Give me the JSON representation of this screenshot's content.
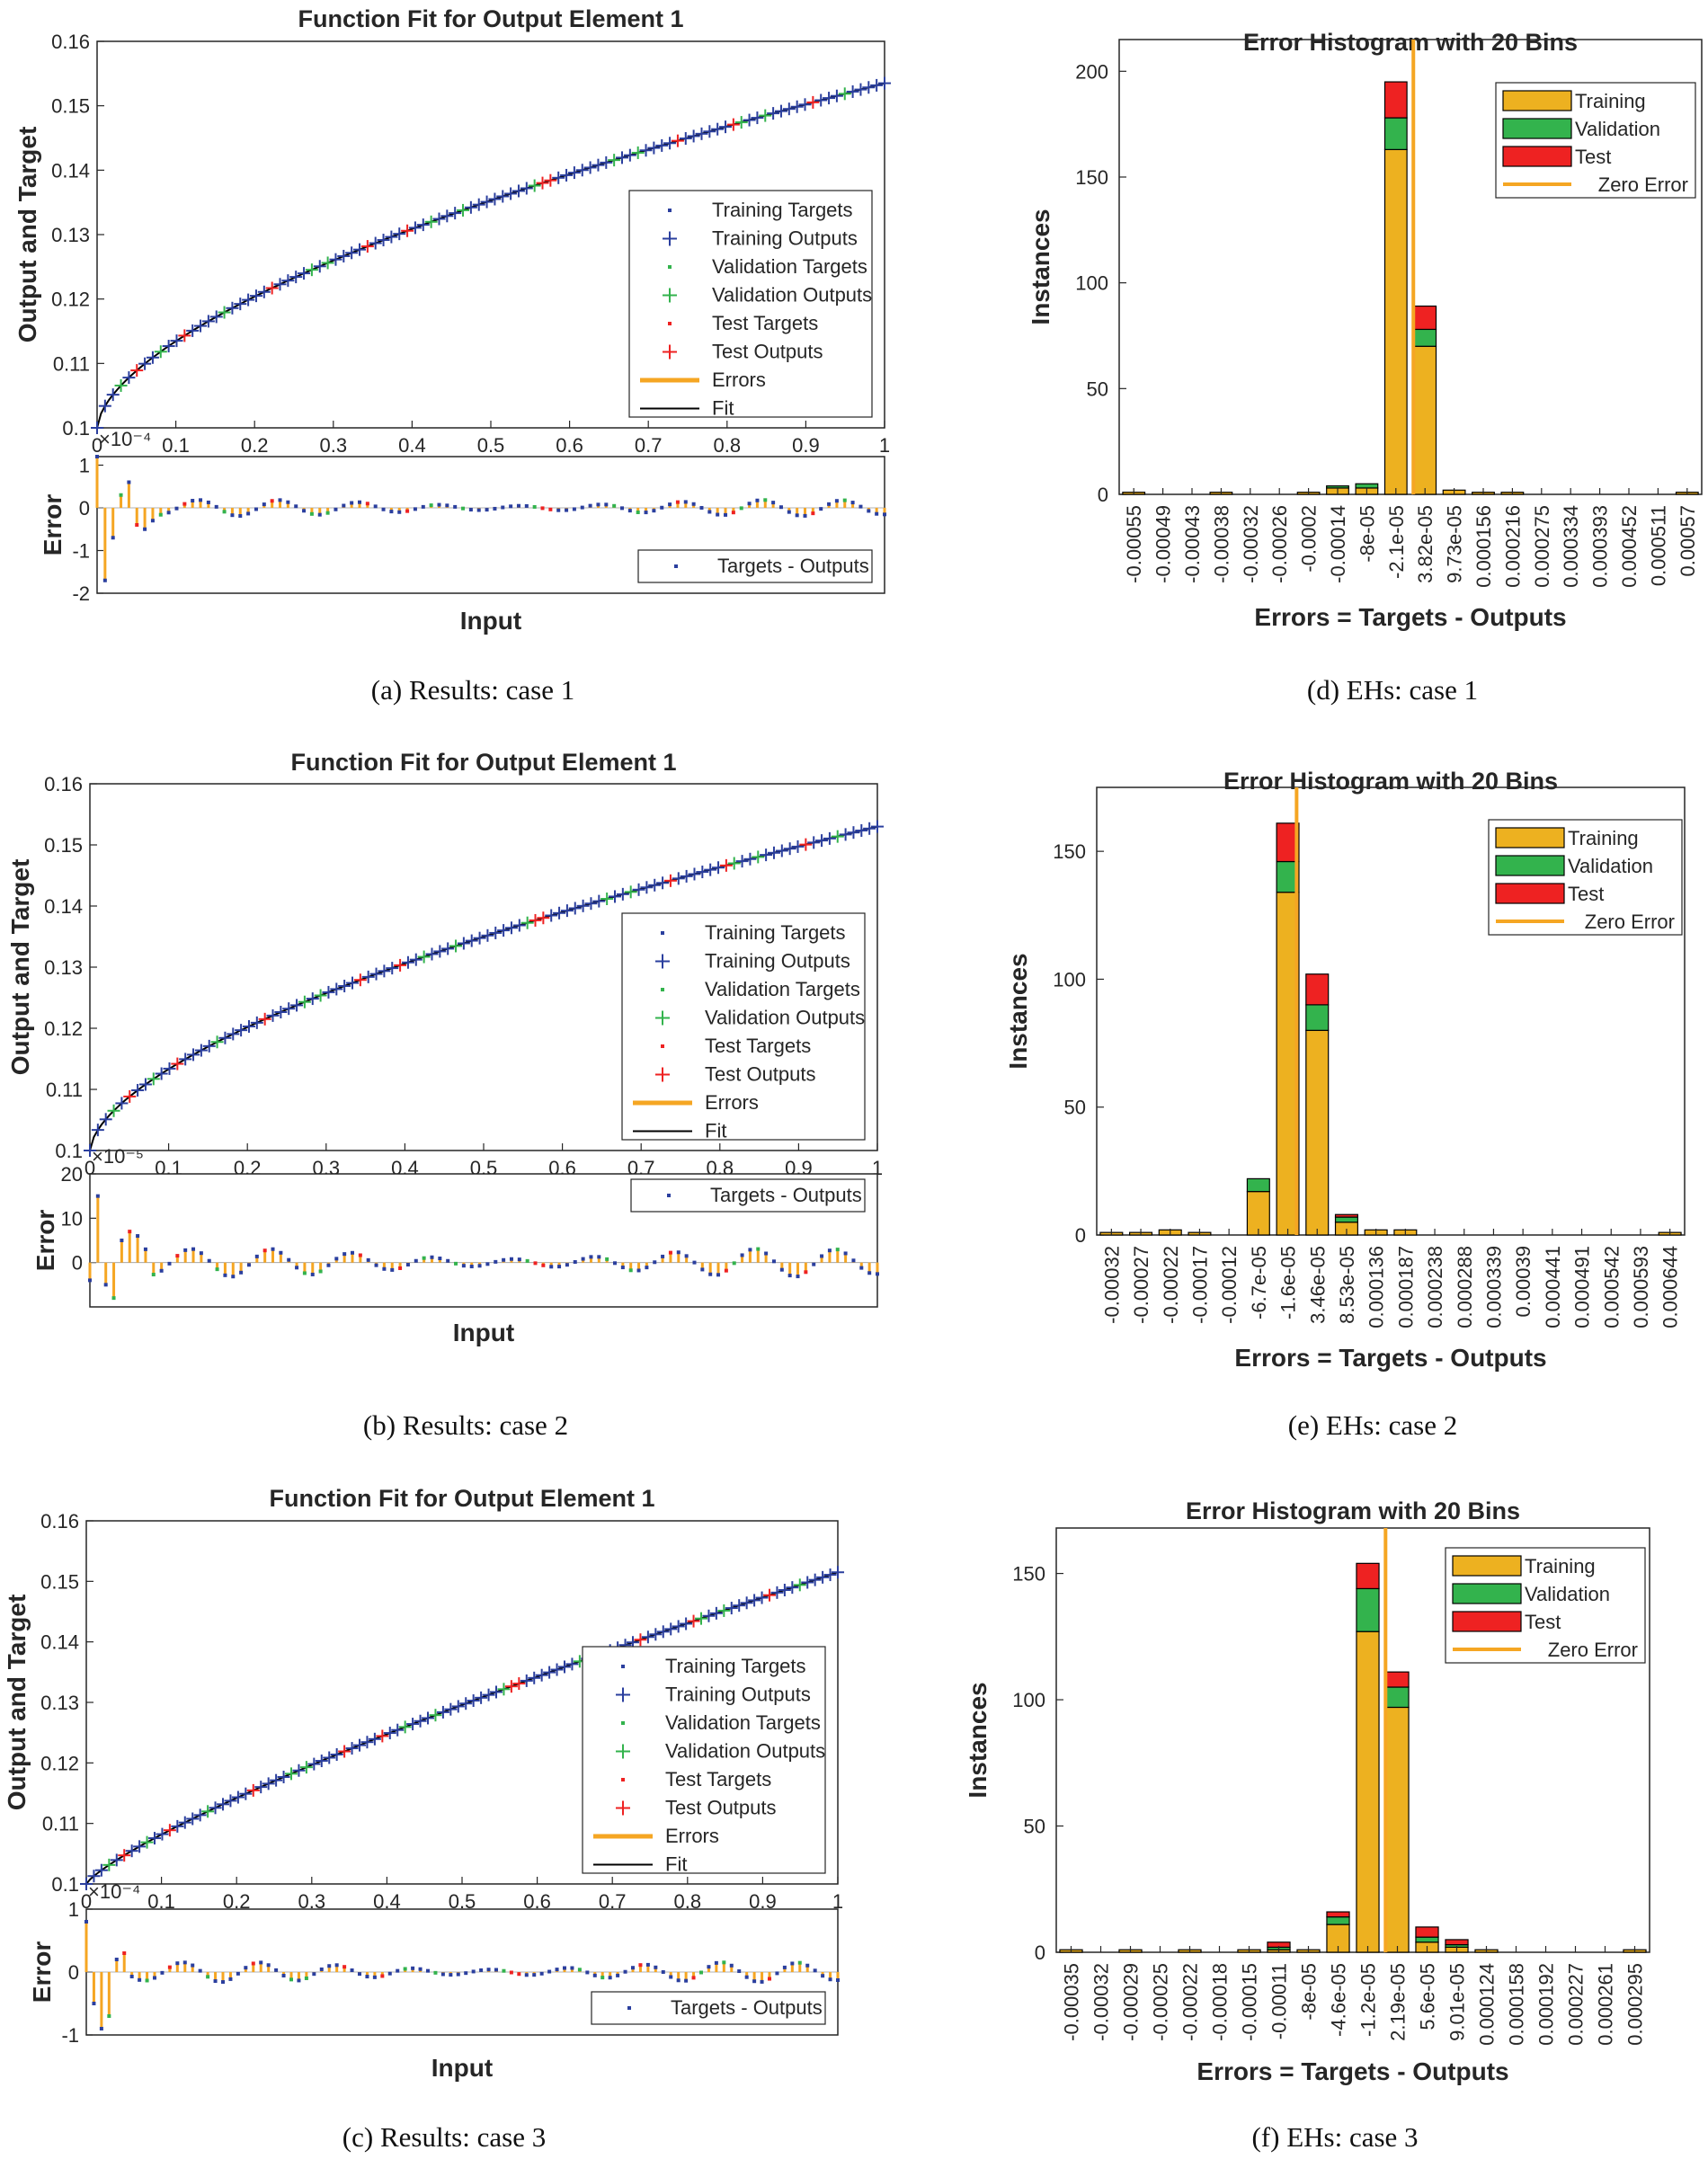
{
  "colors": {
    "training": "#EDB120",
    "validation": "#33B34D",
    "test": "#EE2222",
    "fit_marker": "#2B3F9E",
    "zero_error": "#F5A623",
    "fit_line": "#000000"
  },
  "fit_legend_labels": [
    "Training Targets",
    "Training Outputs",
    "Validation Targets",
    "Validation Outputs",
    "Test Targets",
    "Test Outputs",
    "Errors",
    "Fit"
  ],
  "error_legend_label": "Targets - Outputs",
  "hist_legend_labels": [
    "Training",
    "Validation",
    "Test",
    "Zero Error"
  ],
  "chart_data": [
    {
      "id": "a",
      "type": "line",
      "caption": "(a) Results: case 1",
      "title": "Function Fit for Output Element 1",
      "xlabel": "Input",
      "ylabel": "Output and Target",
      "x_ticks": [
        "0",
        "0.1",
        "0.2",
        "0.3",
        "0.4",
        "0.5",
        "0.6",
        "0.7",
        "0.8",
        "0.9",
        "1"
      ],
      "y_ticks": [
        "0.1",
        "0.11",
        "0.12",
        "0.13",
        "0.14",
        "0.15",
        "0.16"
      ],
      "ylim": [
        0.1,
        0.16
      ],
      "xlim": [
        0,
        1
      ],
      "fit": {
        "y0": 0.1,
        "y1": 0.1535,
        "exponent": 0.6
      },
      "n_points": 100,
      "error_panel": {
        "ylabel": "Error",
        "exponent_label": "×10⁻⁴",
        "y_ticks": [
          "1",
          "0",
          "-1",
          "-2"
        ],
        "ylim": [
          -2,
          1.2
        ],
        "amplitude": 0.12,
        "start_spikes": [
          1.2,
          -1.7,
          -0.7,
          0.3,
          0.6,
          -0.4,
          -0.5,
          -0.3
        ]
      }
    },
    {
      "id": "b",
      "type": "line",
      "caption": "(b) Results: case 2",
      "title": "Function Fit for Output Element 1",
      "xlabel": "Input",
      "ylabel": "Output and Target",
      "x_ticks": [
        "0",
        "0.1",
        "0.2",
        "0.3",
        "0.4",
        "0.5",
        "0.6",
        "0.7",
        "0.8",
        "0.9",
        "1"
      ],
      "y_ticks": [
        "0.1",
        "0.11",
        "0.12",
        "0.13",
        "0.14",
        "0.15",
        "0.16"
      ],
      "ylim": [
        0.1,
        0.16
      ],
      "xlim": [
        0,
        1
      ],
      "fit": {
        "y0": 0.1,
        "y1": 0.153,
        "exponent": 0.6
      },
      "n_points": 100,
      "error_panel": {
        "ylabel": "Error",
        "exponent_label": "×10⁻⁵",
        "y_ticks": [
          "20",
          "10",
          "0"
        ],
        "ylim": [
          -10,
          20
        ],
        "amplitude": 2,
        "start_spikes": [
          -4,
          15,
          -5,
          -8,
          5,
          7,
          6,
          3
        ]
      }
    },
    {
      "id": "c",
      "type": "line",
      "caption": "(c) Results: case 3",
      "title": "Function Fit for Output Element 1",
      "xlabel": "Input",
      "ylabel": "Output and Target",
      "x_ticks": [
        "0",
        "0.1",
        "0.2",
        "0.3",
        "0.4",
        "0.5",
        "0.6",
        "0.7",
        "0.8",
        "0.9",
        "1"
      ],
      "y_ticks": [
        "0.1",
        "0.11",
        "0.12",
        "0.13",
        "0.14",
        "0.15",
        "0.16"
      ],
      "ylim": [
        0.1,
        0.16
      ],
      "xlim": [
        0,
        1
      ],
      "fit": {
        "y0": 0.1,
        "y1": 0.1515,
        "exponent": 0.8
      },
      "n_points": 100,
      "error_panel": {
        "ylabel": "Error",
        "exponent_label": "×10⁻⁴",
        "y_ticks": [
          "1",
          "0",
          "-1"
        ],
        "ylim": [
          -1,
          1
        ],
        "amplitude": 0.1,
        "start_spikes": [
          0.8,
          -0.5,
          -0.9,
          -0.7,
          0.2,
          0.3
        ]
      }
    },
    {
      "id": "d",
      "type": "bar",
      "caption": "(d) EHs: case 1",
      "title": "Error Histogram with 20 Bins",
      "xlabel": "Errors = Targets - Outputs",
      "ylabel": "Instances",
      "categories": [
        "-0.00055",
        "-0.00049",
        "-0.00043",
        "-0.00038",
        "-0.00032",
        "-0.00026",
        "-0.0002",
        "-0.00014",
        "-8e-05",
        "-2.1e-05",
        "3.82e-05",
        "9.73e-05",
        "0.000156",
        "0.000216",
        "0.000275",
        "0.000334",
        "0.000393",
        "0.000452",
        "0.000511",
        "0.00057"
      ],
      "series": [
        {
          "name": "Training",
          "values": [
            1,
            0,
            0,
            1,
            0,
            0,
            1,
            3,
            3,
            163,
            70,
            2,
            1,
            1,
            0,
            0,
            0,
            0,
            0,
            1
          ]
        },
        {
          "name": "Validation",
          "values": [
            0,
            0,
            0,
            0,
            0,
            0,
            0,
            1,
            2,
            15,
            8,
            0,
            0,
            0,
            0,
            0,
            0,
            0,
            0,
            0
          ]
        },
        {
          "name": "Test",
          "values": [
            0,
            0,
            0,
            0,
            0,
            0,
            0,
            0,
            0,
            17,
            11,
            0,
            0,
            0,
            0,
            0,
            0,
            0,
            0,
            0
          ]
        }
      ],
      "y_ticks": [
        "0",
        "50",
        "100",
        "150",
        "200"
      ],
      "ylim": [
        0,
        215
      ],
      "zero_error_position": 9.6,
      "legend_position": "top-right"
    },
    {
      "id": "e",
      "type": "bar",
      "caption": "(e) EHs: case 2",
      "title": "Error Histogram with 20 Bins",
      "xlabel": "Errors = Targets - Outputs",
      "ylabel": "Instances",
      "categories": [
        "-0.00032",
        "-0.00027",
        "-0.00022",
        "-0.00017",
        "-0.00012",
        "-6.7e-05",
        "-1.6e-05",
        "3.46e-05",
        "8.53e-05",
        "0.000136",
        "0.000187",
        "0.000238",
        "0.000288",
        "0.000339",
        "0.00039",
        "0.000441",
        "0.000491",
        "0.000542",
        "0.000593",
        "0.000644"
      ],
      "series": [
        {
          "name": "Training",
          "values": [
            1,
            1,
            2,
            1,
            0,
            17,
            134,
            80,
            5,
            2,
            2,
            0,
            0,
            0,
            0,
            0,
            0,
            0,
            0,
            1
          ]
        },
        {
          "name": "Validation",
          "values": [
            0,
            0,
            0,
            0,
            0,
            5,
            12,
            10,
            2,
            0,
            0,
            0,
            0,
            0,
            0,
            0,
            0,
            0,
            0,
            0
          ]
        },
        {
          "name": "Test",
          "values": [
            0,
            0,
            0,
            0,
            0,
            0,
            15,
            12,
            1,
            0,
            0,
            0,
            0,
            0,
            0,
            0,
            0,
            0,
            0,
            0
          ]
        }
      ],
      "y_ticks": [
        "0",
        "50",
        "100",
        "150"
      ],
      "ylim": [
        0,
        175
      ],
      "zero_error_position": 6.3,
      "legend_position": "top-right"
    },
    {
      "id": "f",
      "type": "bar",
      "caption": "(f) EHs: case 3",
      "title": "Error Histogram with 20 Bins",
      "xlabel": "Errors = Targets - Outputs",
      "ylabel": "Instances",
      "categories": [
        "-0.00035",
        "-0.00032",
        "-0.00029",
        "-0.00025",
        "-0.00022",
        "-0.00018",
        "-0.00015",
        "-0.00011",
        "-8e-05",
        "-4.6e-05",
        "-1.2e-05",
        "2.19e-05",
        "5.6e-05",
        "9.01e-05",
        "0.000124",
        "0.000158",
        "0.000192",
        "0.000227",
        "0.000261",
        "0.000295"
      ],
      "series": [
        {
          "name": "Training",
          "values": [
            1,
            0,
            1,
            0,
            1,
            0,
            1,
            1,
            1,
            11,
            127,
            97,
            4,
            2,
            1,
            0,
            0,
            0,
            0,
            1
          ]
        },
        {
          "name": "Validation",
          "values": [
            0,
            0,
            0,
            0,
            0,
            0,
            0,
            1,
            0,
            3,
            17,
            8,
            2,
            1,
            0,
            0,
            0,
            0,
            0,
            0
          ]
        },
        {
          "name": "Test",
          "values": [
            0,
            0,
            0,
            0,
            0,
            0,
            0,
            2,
            0,
            2,
            10,
            6,
            4,
            2,
            0,
            0,
            0,
            0,
            0,
            0
          ]
        }
      ],
      "y_ticks": [
        "0",
        "50",
        "100",
        "150"
      ],
      "ylim": [
        0,
        168
      ],
      "zero_error_position": 10.6,
      "legend_position": "top-right"
    }
  ]
}
